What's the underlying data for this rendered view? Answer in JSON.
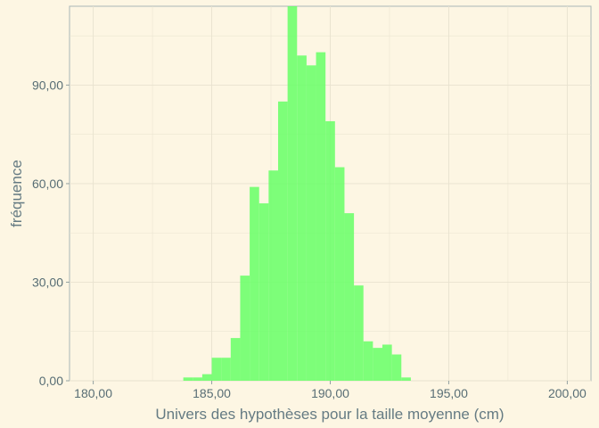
{
  "chart_data": {
    "type": "bar",
    "subtype": "histogram",
    "xlabel": "Univers des hypothèses pour la taille moyenne (cm)",
    "ylabel": "fréquence",
    "xlim": [
      179,
      201
    ],
    "ylim": [
      0,
      114
    ],
    "x_ticks": [
      180,
      185,
      190,
      195,
      200
    ],
    "x_tick_labels": [
      "180,00",
      "185,00",
      "190,00",
      "195,00",
      "200,00"
    ],
    "y_ticks": [
      0,
      30,
      60,
      90
    ],
    "y_tick_labels": [
      "0,00",
      "30,00",
      "60,00",
      "90,00"
    ],
    "grid": true,
    "bar_color": "#66ff66",
    "bar_opacity": 0.85,
    "background_color": "#fdf6e3",
    "grid_color": "#e8e2cf",
    "bin_width": 0.4,
    "bins": [
      {
        "x": 183.8,
        "count": 1
      },
      {
        "x": 184.2,
        "count": 1
      },
      {
        "x": 184.6,
        "count": 2
      },
      {
        "x": 185.0,
        "count": 7
      },
      {
        "x": 185.4,
        "count": 7
      },
      {
        "x": 185.8,
        "count": 13
      },
      {
        "x": 186.2,
        "count": 32
      },
      {
        "x": 186.6,
        "count": 59
      },
      {
        "x": 187.0,
        "count": 54
      },
      {
        "x": 187.4,
        "count": 64
      },
      {
        "x": 187.8,
        "count": 85
      },
      {
        "x": 188.2,
        "count": 114
      },
      {
        "x": 188.6,
        "count": 99
      },
      {
        "x": 189.0,
        "count": 96
      },
      {
        "x": 189.4,
        "count": 100
      },
      {
        "x": 189.8,
        "count": 79
      },
      {
        "x": 190.2,
        "count": 65
      },
      {
        "x": 190.6,
        "count": 51
      },
      {
        "x": 191.0,
        "count": 29
      },
      {
        "x": 191.4,
        "count": 12
      },
      {
        "x": 191.8,
        "count": 10
      },
      {
        "x": 192.2,
        "count": 11
      },
      {
        "x": 192.6,
        "count": 8
      },
      {
        "x": 193.0,
        "count": 1
      }
    ]
  }
}
